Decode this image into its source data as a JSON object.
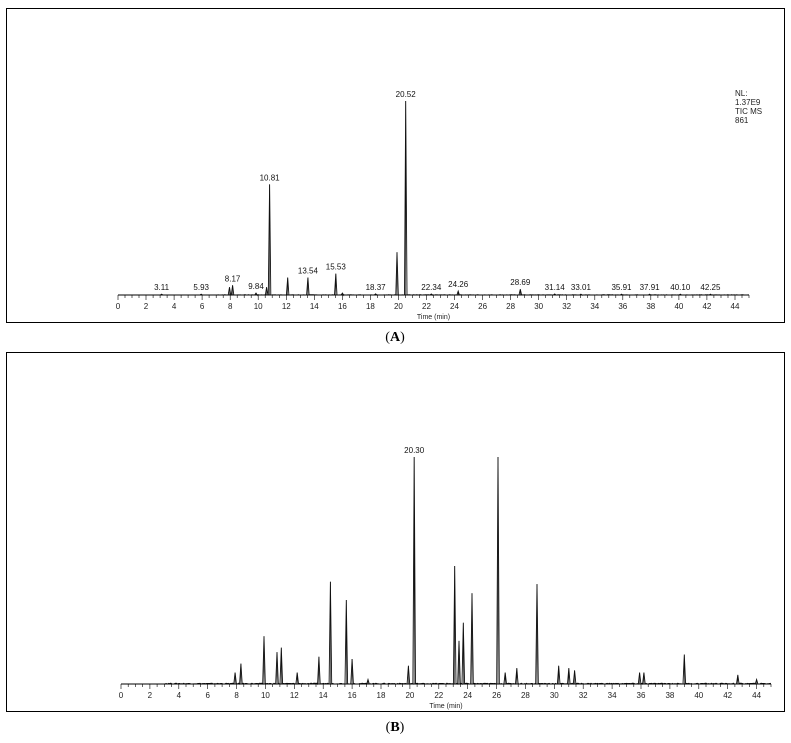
{
  "chart_data": [
    {
      "type": "line",
      "panel_label": "A",
      "xlabel": "Time (min)",
      "xlim": [
        0,
        45
      ],
      "xticks": [
        0,
        2,
        4,
        6,
        8,
        10,
        12,
        14,
        16,
        18,
        20,
        22,
        24,
        26,
        28,
        30,
        32,
        34,
        36,
        38,
        40,
        42,
        44
      ],
      "ylim": [
        0,
        100
      ],
      "info": [
        "NL:",
        "1.37E9",
        "TIC  MS",
        "861"
      ],
      "peak_labels": [
        "3.11",
        "5.93",
        "8.17",
        "9.84",
        "10.81",
        "13.54",
        "15.53",
        "18.37",
        "20.52",
        "22.34",
        "24.26",
        "28.69",
        "31.14",
        "33.01",
        "35.91",
        "37.91",
        "40.10",
        "42.25"
      ],
      "peaks": [
        {
          "x": 3.11,
          "y": 0.4
        },
        {
          "x": 5.93,
          "y": 0.4
        },
        {
          "x": 7.95,
          "y": 4
        },
        {
          "x": 8.17,
          "y": 5
        },
        {
          "x": 9.84,
          "y": 1
        },
        {
          "x": 10.6,
          "y": 4
        },
        {
          "x": 10.81,
          "y": 57
        },
        {
          "x": 12.1,
          "y": 9
        },
        {
          "x": 13.54,
          "y": 9
        },
        {
          "x": 15.53,
          "y": 11
        },
        {
          "x": 16.0,
          "y": 1
        },
        {
          "x": 18.37,
          "y": 0.6
        },
        {
          "x": 19.9,
          "y": 22
        },
        {
          "x": 20.52,
          "y": 100
        },
        {
          "x": 22.34,
          "y": 0.5
        },
        {
          "x": 24.26,
          "y": 2
        },
        {
          "x": 28.69,
          "y": 3
        },
        {
          "x": 31.14,
          "y": 0.5
        },
        {
          "x": 33.01,
          "y": 0.4
        },
        {
          "x": 35.91,
          "y": 0.4
        },
        {
          "x": 37.91,
          "y": 0.4
        },
        {
          "x": 40.1,
          "y": 0.4
        },
        {
          "x": 42.25,
          "y": 0.4
        }
      ]
    },
    {
      "type": "line",
      "panel_label": "B",
      "xlabel": "Time (min)",
      "xlim": [
        0,
        45
      ],
      "xticks": [
        0,
        2,
        4,
        6,
        8,
        10,
        12,
        14,
        16,
        18,
        20,
        22,
        24,
        26,
        28,
        30,
        32,
        34,
        36,
        38,
        40,
        42,
        44
      ],
      "ylim": [
        0,
        100
      ],
      "peak_labels": [
        "20.30"
      ],
      "peaks": [
        {
          "x": 7.9,
          "y": 5
        },
        {
          "x": 8.3,
          "y": 9
        },
        {
          "x": 9.9,
          "y": 21
        },
        {
          "x": 10.8,
          "y": 14
        },
        {
          "x": 11.1,
          "y": 16
        },
        {
          "x": 12.2,
          "y": 5
        },
        {
          "x": 13.7,
          "y": 12
        },
        {
          "x": 14.5,
          "y": 45
        },
        {
          "x": 15.6,
          "y": 37
        },
        {
          "x": 16.0,
          "y": 11
        },
        {
          "x": 17.1,
          "y": 2
        },
        {
          "x": 19.9,
          "y": 8
        },
        {
          "x": 20.3,
          "y": 100
        },
        {
          "x": 23.1,
          "y": 52
        },
        {
          "x": 23.4,
          "y": 19
        },
        {
          "x": 23.7,
          "y": 27
        },
        {
          "x": 24.3,
          "y": 40
        },
        {
          "x": 26.1,
          "y": 100
        },
        {
          "x": 26.6,
          "y": 5
        },
        {
          "x": 27.4,
          "y": 7
        },
        {
          "x": 28.8,
          "y": 44
        },
        {
          "x": 30.3,
          "y": 8
        },
        {
          "x": 31.0,
          "y": 7
        },
        {
          "x": 31.4,
          "y": 6
        },
        {
          "x": 35.9,
          "y": 5
        },
        {
          "x": 36.2,
          "y": 5
        },
        {
          "x": 39.0,
          "y": 13
        },
        {
          "x": 42.7,
          "y": 4
        },
        {
          "x": 44.0,
          "y": 2
        }
      ]
    }
  ],
  "captions": {
    "a": "A",
    "b": "B"
  }
}
